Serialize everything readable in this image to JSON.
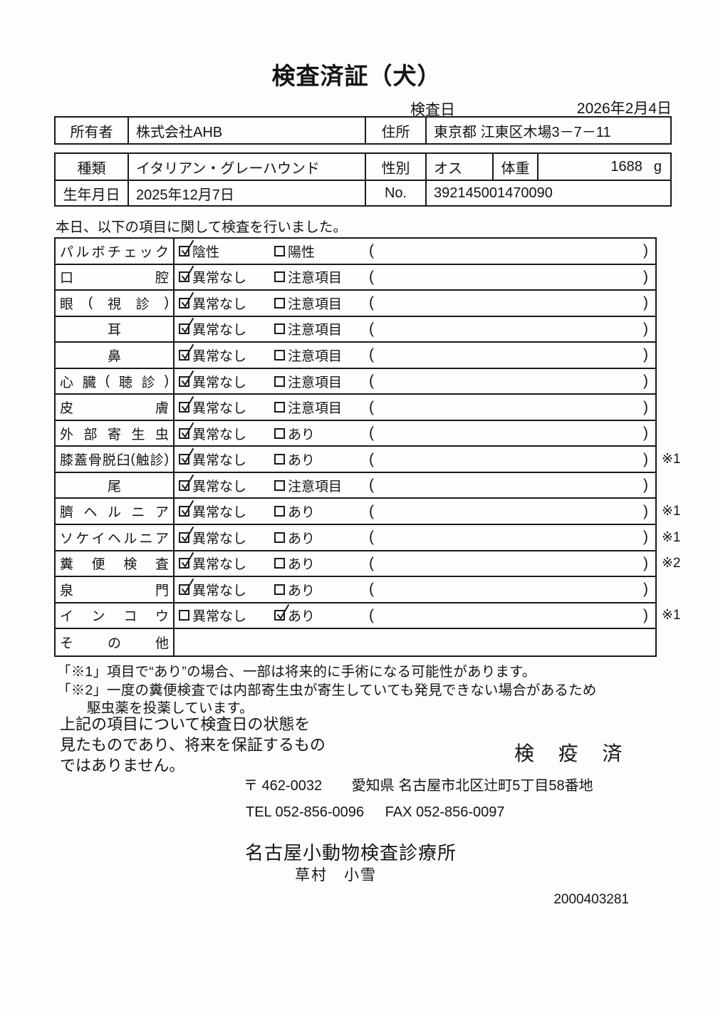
{
  "title": "検査済証（犬）",
  "inspection_date": {
    "label": "検査日",
    "value": "2026年2月4日"
  },
  "owner_table": {
    "owner_label": "所有者",
    "owner_value": "株式会社AHB",
    "address_label": "住所",
    "address_value": "東京都 江東区木場3－7－11"
  },
  "info_table": {
    "species_label": "種類",
    "species_value": "イタリアン・グレーハウンド",
    "sex_label": "性別",
    "sex_value": "オス",
    "weight_label": "体重",
    "weight_value": "1688",
    "weight_unit": "g",
    "birth_label": "生年月日",
    "birth_value": "2025年12月7日",
    "no_label": "No.",
    "no_value": "392145001470090"
  },
  "intro": "本日、以下の項目に関して検査を行いました。",
  "checklist": {
    "paren_open": "(",
    "paren_close": ")",
    "rows": [
      {
        "label": "パルボチェック",
        "opt1": "陰性",
        "opt2": "陽性",
        "checked": 1,
        "note": ""
      },
      {
        "label": "口腔",
        "opt1": "異常なし",
        "opt2": "注意項目",
        "checked": 1,
        "note": ""
      },
      {
        "label": "眼(視診)",
        "opt1": "異常なし",
        "opt2": "注意項目",
        "checked": 1,
        "note": ""
      },
      {
        "label": "耳",
        "opt1": "異常なし",
        "opt2": "注意項目",
        "checked": 1,
        "note": ""
      },
      {
        "label": "鼻",
        "opt1": "異常なし",
        "opt2": "注意項目",
        "checked": 1,
        "note": ""
      },
      {
        "label": "心臓(聴診)",
        "opt1": "異常なし",
        "opt2": "注意項目",
        "checked": 1,
        "note": ""
      },
      {
        "label": "皮膚",
        "opt1": "異常なし",
        "opt2": "注意項目",
        "checked": 1,
        "note": ""
      },
      {
        "label": "外部寄生虫",
        "opt1": "異常なし",
        "opt2": "あり",
        "checked": 1,
        "note": ""
      },
      {
        "label": "膝蓋骨脱臼(触診)",
        "opt1": "異常なし",
        "opt2": "あり",
        "checked": 1,
        "note": "※1"
      },
      {
        "label": "尾",
        "opt1": "異常なし",
        "opt2": "注意項目",
        "checked": 1,
        "note": ""
      },
      {
        "label": "臍ヘルニア",
        "opt1": "異常なし",
        "opt2": "あり",
        "checked": 1,
        "note": "※1"
      },
      {
        "label": "ソケイヘルニア",
        "opt1": "異常なし",
        "opt2": "あり",
        "checked": 1,
        "note": "※1"
      },
      {
        "label": "糞便検査",
        "opt1": "異常なし",
        "opt2": "あり",
        "checked": 1,
        "note": "※2"
      },
      {
        "label": "泉門",
        "opt1": "異常なし",
        "opt2": "あり",
        "checked": 1,
        "note": ""
      },
      {
        "label": "インコウ",
        "opt1": "異常なし",
        "opt2": "あり",
        "checked": 2,
        "note": "※1"
      },
      {
        "label": "その他",
        "opt1": "",
        "opt2": "",
        "checked": 0,
        "note": ""
      }
    ]
  },
  "footnotes": {
    "line1": "「※1」項目で“あり”の場合、一部は将来的に手術になる可能性があります。",
    "line2": "「※2」一度の糞便検査では内部寄生虫が寄生していても発見できない場合があるため",
    "line3": "駆虫薬を投薬しています。"
  },
  "disclaimer_lines": [
    "上記の項目について検査日の状態を",
    "見たものであり、将来を保証するもの",
    "ではありません。"
  ],
  "quarantine_stamp": "検 疫 済",
  "clinic": {
    "postal": "〒 462-0032",
    "address": "愛知県 名古屋市北区辻町5丁目58番地",
    "tel": "TEL 052-856-0096",
    "fax": "FAX 052-856-0097",
    "name": "名古屋小動物検査診療所",
    "veterinarian": "草村　小雪"
  },
  "serial": "2000403281"
}
